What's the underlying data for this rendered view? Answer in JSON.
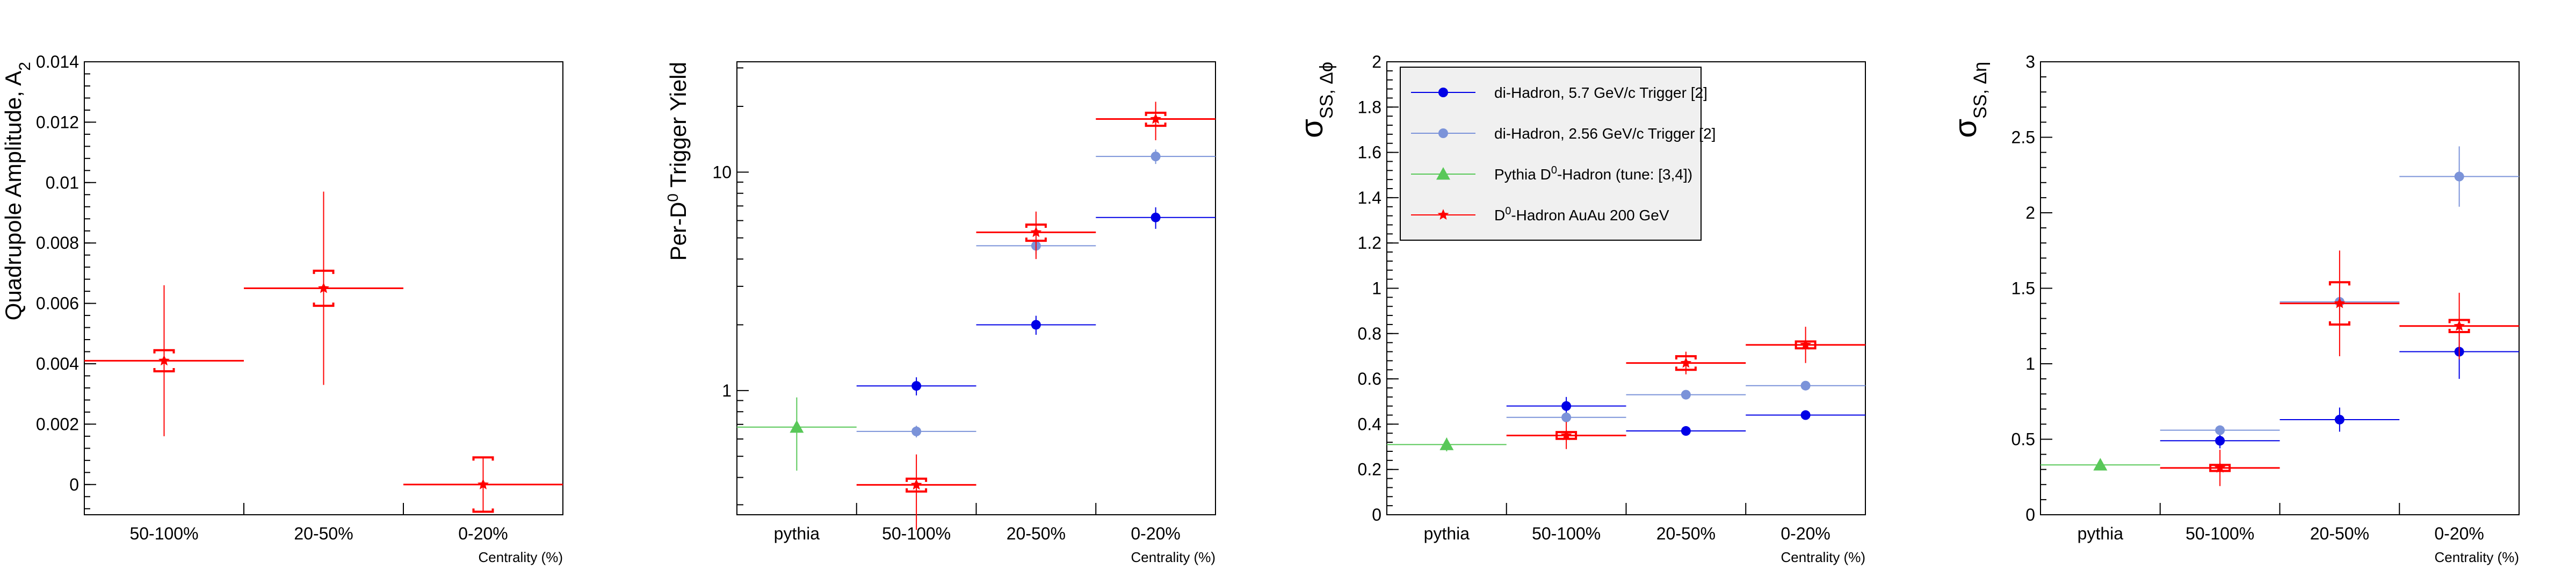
{
  "colors": {
    "dihadron_57": "#0000e6",
    "dihadron_256": "#7b93d9",
    "pythia": "#58c858",
    "d0_auau": "#ff0000",
    "axis": "#000000"
  },
  "chart_data": [
    {
      "type": "scatter",
      "ylabel": "Quadrupole Amplitude, A",
      "ylabel_sub": "2",
      "xlabel": "Centrality (%)",
      "categories": [
        "50-100%",
        "20-50%",
        "0-20%"
      ],
      "ylim": [
        -0.001,
        0.014
      ],
      "yscale": "linear",
      "yticks": [
        0,
        0.002,
        0.004,
        0.006,
        0.008,
        0.01,
        0.012,
        0.014
      ],
      "ytick_labels": [
        "0",
        "0.002",
        "0.004",
        "0.006",
        "0.008",
        "0.01",
        "0.012",
        "0.014"
      ],
      "series": [
        {
          "name": "D0-Hadron AuAu 200 GeV",
          "color_key": "d0_auau",
          "marker": "star",
          "points": [
            {
              "cat": 0,
              "y": 0.0041,
              "err_stat": 0.0025,
              "err_sys": 0.00035
            },
            {
              "cat": 1,
              "y": 0.0065,
              "err_stat": 0.0032,
              "err_sys": 0.00058
            },
            {
              "cat": 2,
              "y": 0.0,
              "err_stat": 0.0009,
              "err_sys": 0.0009
            }
          ]
        }
      ]
    },
    {
      "type": "scatter",
      "ylabel": "Per-D",
      "ylabel_sup": "0",
      "ylabel_tail": " Trigger Yield",
      "xlabel": "Centrality (%)",
      "categories": [
        "pythia",
        "50-100%",
        "20-50%",
        "0-20%"
      ],
      "ylim": [
        0.27,
        32
      ],
      "yscale": "log",
      "yticks": [
        1,
        10
      ],
      "ytick_labels": [
        "1",
        "10"
      ],
      "series": [
        {
          "name": "di-Hadron, 5.7 GeV/c Trigger [2]",
          "color_key": "dihadron_57",
          "marker": "circle",
          "points": [
            {
              "cat": 1,
              "y": 1.05,
              "err_stat": 0.1
            },
            {
              "cat": 2,
              "y": 2.0,
              "err_stat": 0.2
            },
            {
              "cat": 3,
              "y": 6.2,
              "err_stat": 0.7
            }
          ]
        },
        {
          "name": "di-Hadron, 2.56 GeV/c Trigger [2]",
          "color_key": "dihadron_256",
          "marker": "circle",
          "points": [
            {
              "cat": 1,
              "y": 0.65,
              "err_stat": 0.04
            },
            {
              "cat": 2,
              "y": 4.6,
              "err_stat": 0.4
            },
            {
              "cat": 3,
              "y": 11.8,
              "err_stat": 0.9
            }
          ]
        },
        {
          "name": "Pythia D0-Hadron (tune: [3,4])",
          "color_key": "pythia",
          "marker": "triangle",
          "points": [
            {
              "cat": 0,
              "y": 0.68,
              "err_stat": 0.25
            }
          ]
        },
        {
          "name": "D0-Hadron AuAu 200 GeV",
          "color_key": "d0_auau",
          "marker": "star",
          "points": [
            {
              "cat": 1,
              "y": 0.37,
              "err_stat": 0.14,
              "err_sys": 0.025
            },
            {
              "cat": 2,
              "y": 5.3,
              "err_stat": 1.3,
              "err_sys": 0.45
            },
            {
              "cat": 3,
              "y": 17.5,
              "err_stat": 3.5,
              "err_sys": 1.2
            }
          ]
        }
      ]
    },
    {
      "type": "scatter",
      "ylabel": "σ",
      "ylabel_sub": "SS, Δϕ",
      "xlabel": "Centrality (%)",
      "categories": [
        "pythia",
        "50-100%",
        "20-50%",
        "0-20%"
      ],
      "ylim": [
        0,
        2
      ],
      "yscale": "linear",
      "yticks": [
        0,
        0.2,
        0.4,
        0.6,
        0.8,
        1,
        1.2,
        1.4,
        1.6,
        1.8,
        2
      ],
      "ytick_labels": [
        "0",
        "0.2",
        "0.4",
        "0.6",
        "0.8",
        "1",
        "1.2",
        "1.4",
        "1.6",
        "1.8",
        "2"
      ],
      "legend": {
        "placement": "top-left",
        "entries": [
          {
            "text": "di-Hadron, 5.7 GeV/c Trigger [2]",
            "color_key": "dihadron_57",
            "marker": "circle"
          },
          {
            "text": "di-Hadron, 2.56 GeV/c Trigger [2]",
            "color_key": "dihadron_256",
            "marker": "circle"
          },
          {
            "text_pre": "Pythia D",
            "text_sup": "0",
            "text_post": "-Hadron (tune: [3,4])",
            "color_key": "pythia",
            "marker": "triangle"
          },
          {
            "text_pre": "D",
            "text_sup": "0",
            "text_post": "-Hadron AuAu 200 GeV",
            "color_key": "d0_auau",
            "marker": "star"
          }
        ]
      },
      "series": [
        {
          "name": "di-Hadron, 5.7 GeV/c Trigger [2]",
          "color_key": "dihadron_57",
          "marker": "circle",
          "points": [
            {
              "cat": 1,
              "y": 0.48,
              "err_stat": 0.04
            },
            {
              "cat": 2,
              "y": 0.37,
              "err_stat": 0.02
            },
            {
              "cat": 3,
              "y": 0.44,
              "err_stat": 0.02
            }
          ]
        },
        {
          "name": "di-Hadron, 2.56 GeV/c Trigger [2]",
          "color_key": "dihadron_256",
          "marker": "circle",
          "points": [
            {
              "cat": 1,
              "y": 0.43,
              "err_stat": 0.02
            },
            {
              "cat": 2,
              "y": 0.53,
              "err_stat": 0.02
            },
            {
              "cat": 3,
              "y": 0.57,
              "err_stat": 0.02
            }
          ]
        },
        {
          "name": "Pythia D0-Hadron (tune: [3,4])",
          "color_key": "pythia",
          "marker": "triangle",
          "points": [
            {
              "cat": 0,
              "y": 0.31,
              "err_stat": 0.03
            }
          ]
        },
        {
          "name": "D0-Hadron AuAu 200 GeV",
          "color_key": "d0_auau",
          "marker": "star",
          "points": [
            {
              "cat": 1,
              "y": 0.35,
              "err_stat": 0.06,
              "err_sys": 0.015
            },
            {
              "cat": 2,
              "y": 0.67,
              "err_stat": 0.05,
              "err_sys": 0.03
            },
            {
              "cat": 3,
              "y": 0.75,
              "err_stat": 0.08,
              "err_sys": 0.015
            }
          ]
        }
      ]
    },
    {
      "type": "scatter",
      "ylabel": "σ",
      "ylabel_sub": "SS, Δη",
      "xlabel": "Centrality (%)",
      "categories": [
        "pythia",
        "50-100%",
        "20-50%",
        "0-20%"
      ],
      "ylim": [
        0,
        3
      ],
      "yscale": "linear",
      "yticks": [
        0,
        0.5,
        1,
        1.5,
        2,
        2.5,
        3
      ],
      "ytick_labels": [
        "0",
        "0.5",
        "1",
        "1.5",
        "2",
        "2.5",
        "3"
      ],
      "series": [
        {
          "name": "di-Hadron, 5.7 GeV/c Trigger [2]",
          "color_key": "dihadron_57",
          "marker": "circle",
          "points": [
            {
              "cat": 1,
              "y": 0.49,
              "err_stat": 0.05
            },
            {
              "cat": 2,
              "y": 0.63,
              "err_stat": 0.08
            },
            {
              "cat": 3,
              "y": 1.08,
              "err_stat": 0.18
            }
          ]
        },
        {
          "name": "di-Hadron, 2.56 GeV/c Trigger [2]",
          "color_key": "dihadron_256",
          "marker": "circle",
          "points": [
            {
              "cat": 1,
              "y": 0.56,
              "err_stat": 0.03
            },
            {
              "cat": 2,
              "y": 1.41,
              "err_stat": 0.12
            },
            {
              "cat": 3,
              "y": 2.24,
              "err_stat": 0.2
            }
          ]
        },
        {
          "name": "Pythia D0-Hadron (tune: [3,4])",
          "color_key": "pythia",
          "marker": "triangle",
          "points": [
            {
              "cat": 0,
              "y": 0.33,
              "err_stat": 0.02
            }
          ]
        },
        {
          "name": "D0-Hadron AuAu 200 GeV",
          "color_key": "d0_auau",
          "marker": "star",
          "points": [
            {
              "cat": 1,
              "y": 0.31,
              "err_stat": 0.12,
              "err_sys": 0.02
            },
            {
              "cat": 2,
              "y": 1.4,
              "err_stat": 0.35,
              "err_sys": 0.14
            },
            {
              "cat": 3,
              "y": 1.25,
              "err_stat": 0.22,
              "err_sys": 0.04
            }
          ]
        }
      ]
    }
  ]
}
